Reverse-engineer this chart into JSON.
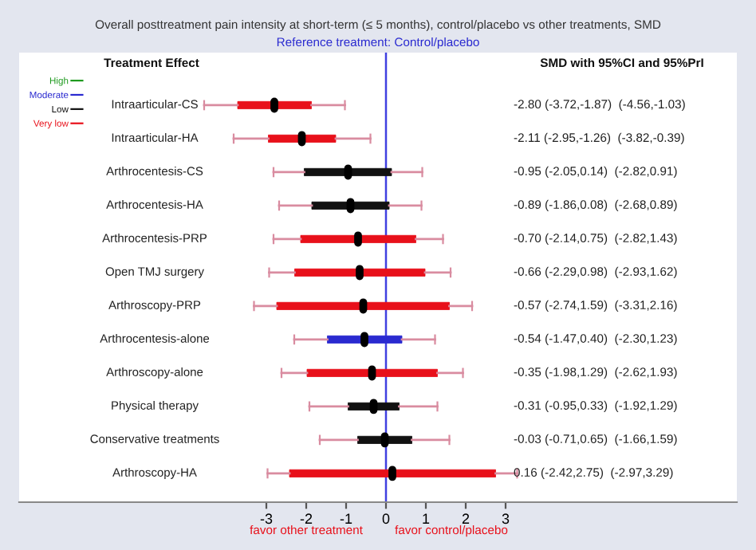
{
  "chart_data": {
    "type": "box",
    "orientation": "horizontal",
    "title": "Overall posttreatment pain intensity at short-term (≤ 5 months), control/placebo vs other treatments, SMD",
    "subtitle": "Reference treatment: Control/placebo",
    "categories": [
      "Intraarticular-CS",
      "Intraarticular-HA",
      "Arthrocentesis-CS",
      "Arthrocentesis-HA",
      "Arthrocentesis-PRP",
      "Open TMJ surgery",
      "Arthroscopy-PRP",
      "Arthrocentesis-alone",
      "Arthroscopy-alone",
      "Physical therapy",
      "Conservative treatments",
      "Arthroscopy-HA"
    ],
    "series": [
      {
        "colors": [
          "#e8101a",
          "#e8101a",
          "#111111",
          "#111111",
          "#e8101a",
          "#e8101a",
          "#e8101a",
          "#2a2ad0",
          "#e8101a",
          "#111111",
          "#111111",
          "#e8101a"
        ],
        "boxes": [
          {
            "low": -4.56,
            "q1": -3.72,
            "median": -2.8,
            "q3": -1.87,
            "high": -1.03
          },
          {
            "low": -3.82,
            "q1": -2.95,
            "median": -2.11,
            "q3": -1.26,
            "high": -0.39
          },
          {
            "low": -2.82,
            "q1": -2.05,
            "median": -0.95,
            "q3": 0.14,
            "high": 0.91
          },
          {
            "low": -2.68,
            "q1": -1.86,
            "median": -0.89,
            "q3": 0.08,
            "high": 0.89
          },
          {
            "low": -2.82,
            "q1": -2.14,
            "median": -0.7,
            "q3": 0.75,
            "high": 1.43
          },
          {
            "low": -2.93,
            "q1": -2.29,
            "median": -0.66,
            "q3": 0.98,
            "high": 1.62
          },
          {
            "low": -3.31,
            "q1": -2.74,
            "median": -0.57,
            "q3": 1.59,
            "high": 2.16
          },
          {
            "low": -2.3,
            "q1": -1.47,
            "median": -0.54,
            "q3": 0.4,
            "high": 1.23
          },
          {
            "low": -2.62,
            "q1": -1.98,
            "median": -0.35,
            "q3": 1.29,
            "high": 1.93
          },
          {
            "low": -1.92,
            "q1": -0.95,
            "median": -0.31,
            "q3": 0.33,
            "high": 1.29
          },
          {
            "low": -1.66,
            "q1": -0.71,
            "median": -0.03,
            "q3": 0.65,
            "high": 1.59
          },
          {
            "low": -2.97,
            "q1": -2.42,
            "median": 0.16,
            "q3": 2.75,
            "high": 3.29
          }
        ],
        "value_labels": [
          "-2.80 (-3.72,-1.87)  (-4.56,-1.03)",
          "-2.11 (-2.95,-1.26)  (-3.82,-0.39)",
          "-0.95 (-2.05,0.14)  (-2.82,0.91)",
          "-0.89 (-1.86,0.08)  (-2.68,0.89)",
          "-0.70 (-2.14,0.75)  (-2.82,1.43)",
          "-0.66 (-2.29,0.98)  (-2.93,1.62)",
          "-0.57 (-2.74,1.59)  (-3.31,2.16)",
          "-0.54 (-1.47,0.40)  (-2.30,1.23)",
          "-0.35 (-1.98,1.29)  (-2.62,1.93)",
          "-0.31 (-0.95,0.33)  (-1.92,1.29)",
          "-0.03 (-0.71,0.65)  (-1.66,1.59)",
          "0.16 (-2.42,2.75)  (-2.97,3.29)"
        ]
      },
      {
        "name": "High",
        "color": "#1f9a1f",
        "values": [
          null,
          null,
          null,
          null,
          null,
          null,
          null,
          null,
          null,
          null,
          null,
          null
        ]
      },
      {
        "name": "Moderate",
        "color": "#2a2ad0",
        "values": [
          null,
          null,
          null,
          null,
          null,
          null,
          null,
          null,
          null,
          null,
          null,
          null
        ]
      },
      {
        "name": "Low",
        "color": "#111111",
        "values": [
          null,
          null,
          null,
          null,
          null,
          null,
          null,
          null,
          null,
          null,
          null,
          null
        ]
      },
      {
        "name": "Very low",
        "color": "#e8101a",
        "values": [
          null,
          null,
          null,
          null,
          null,
          null,
          null,
          null,
          null,
          null,
          null,
          null
        ]
      }
    ],
    "xlim": [
      -9.2,
      8.8
    ],
    "xticks": [
      -3,
      -2,
      -1,
      0,
      1,
      2,
      3
    ],
    "ref_lines": [
      {
        "axis": "x",
        "value": 0,
        "color": "#4040e0"
      }
    ],
    "annotations": [
      "Treatment Effect",
      "SMD with 95%CI and 95%PrI",
      "favor other treatment",
      "favor control/placebo"
    ],
    "legend": "top left",
    "grid": false
  }
}
